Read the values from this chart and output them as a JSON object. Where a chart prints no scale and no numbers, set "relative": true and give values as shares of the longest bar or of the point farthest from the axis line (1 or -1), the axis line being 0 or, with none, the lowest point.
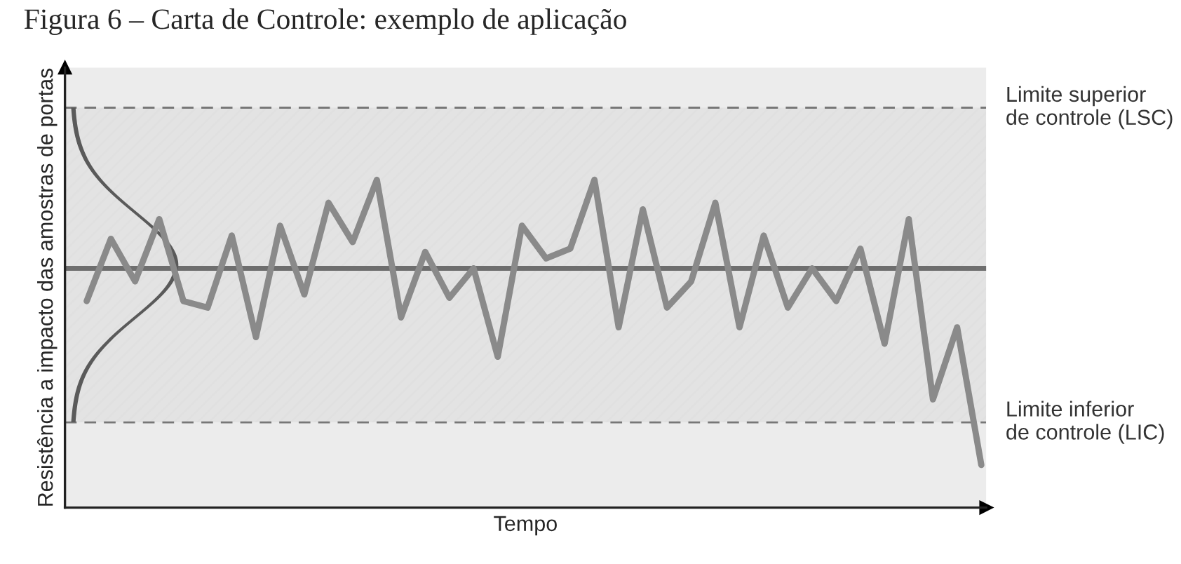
{
  "chart_data": {
    "type": "line",
    "title": "Figura 6 – Carta de Controle: exemplo de aplicação",
    "xlabel": "Tempo",
    "ylabel": "Resistência a impacto das amostras de portas",
    "relative": true,
    "categories": [
      null,
      null,
      null,
      null,
      null,
      null,
      null,
      null,
      null,
      null,
      null,
      null,
      null,
      null,
      null,
      null,
      null,
      null,
      null,
      null,
      null,
      null,
      null,
      null,
      null,
      null,
      null,
      null,
      null,
      null,
      null,
      null,
      null,
      null,
      null,
      null,
      null,
      null
    ],
    "series": [
      {
        "color": "#8a8a8a",
        "values": [
          0.63,
          0.82,
          0.69,
          0.88,
          0.63,
          0.61,
          0.83,
          0.52,
          0.86,
          0.65,
          0.93,
          0.81,
          1.0,
          0.58,
          0.78,
          0.64,
          0.73,
          0.46,
          0.86,
          0.76,
          0.79,
          1.0,
          0.55,
          0.91,
          0.61,
          0.69,
          0.93,
          0.55,
          0.83,
          0.61,
          0.73,
          0.63,
          0.79,
          0.5,
          0.88,
          0.33,
          0.55,
          0.13
        ]
      }
    ],
    "ref_lines": [
      {
        "axis": "y",
        "value": 0.73,
        "color": "#6e6e6e",
        "line_style": "solid"
      },
      {
        "axis": "y",
        "value": 1.22,
        "label": "Limite superior\nde controle (LSC)",
        "color": "#777777",
        "line_style": "dashed"
      },
      {
        "axis": "y",
        "value": 0.26,
        "label": "Limite inferior\nde controle (LIC)",
        "color": "#777777",
        "line_style": "dashed"
      }
    ],
    "bands": [
      {
        "axis": "y",
        "from": 0.26,
        "to": 1.22,
        "color": "#d9d9d9"
      }
    ],
    "legend": false,
    "marker": "none",
    "line_style": "solid"
  }
}
